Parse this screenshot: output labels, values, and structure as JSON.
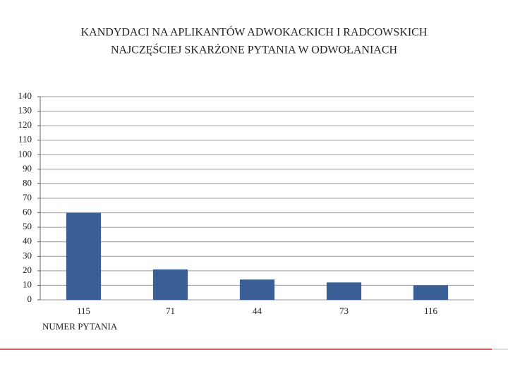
{
  "chart_data": {
    "type": "bar",
    "title": [
      "KANDYDACI NA APLIKANTÓW ADWOKACKICH I RADCOWSKICH",
      "NAJCZĘŚCIEJ SKARŻONE PYTANIA W ODWOŁANIACH"
    ],
    "x_label": "NUMER PYTANIA",
    "categories": [
      "115",
      "71",
      "44",
      "73",
      "116"
    ],
    "values": [
      60,
      21,
      14,
      12,
      10
    ],
    "color": "#3a5f94",
    "ylim": [
      0,
      140
    ],
    "yticks": [
      0,
      10,
      20,
      30,
      40,
      50,
      60,
      70,
      80,
      90,
      100,
      110,
      120,
      130,
      140
    ],
    "grid": true
  }
}
